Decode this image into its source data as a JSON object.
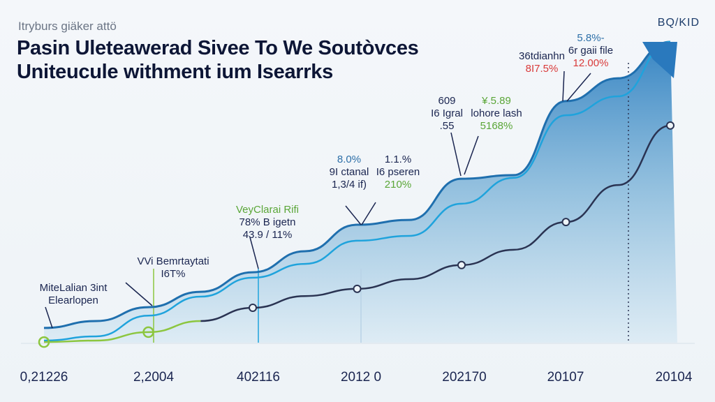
{
  "header": {
    "kicker": "Itryburs giäker attö",
    "title_line1": "Pasin Uleteawerad Sivee To We Soutòvces",
    "title_line2": "Uniteucule withment ium Isearrks",
    "logo": "BQ/KID"
  },
  "annotations": [
    {
      "lines": [
        "MiteLalian 3int",
        "Elearlopen"
      ],
      "colors": [
        "navy",
        "navy"
      ]
    },
    {
      "lines": [
        "VVi Bemrtaytati",
        "I6T%"
      ],
      "colors": [
        "navy",
        "navy"
      ]
    },
    {
      "lines": [
        "VeyClarai Rifi",
        "78% B igetn",
        "43.9 / 11%"
      ],
      "colors": [
        "green",
        "navy",
        "navy"
      ]
    },
    {
      "lines": [
        "8.0%",
        "9I ctanal",
        "1,3/4 if)"
      ],
      "colors": [
        "blue",
        "navy",
        "navy"
      ]
    },
    {
      "lines": [
        "1.1.%",
        "I6 pseren",
        "210%"
      ],
      "colors": [
        "navy",
        "navy",
        "green"
      ]
    },
    {
      "lines": [
        "609",
        "I6 Igral",
        ".55"
      ],
      "colors": [
        "navy",
        "navy",
        "navy"
      ]
    },
    {
      "lines": [
        "¥.5.89",
        "lohore lash",
        "5168%"
      ],
      "colors": [
        "green",
        "navy",
        "green"
      ]
    },
    {
      "lines": [
        "36tdianhn",
        "8I7.5%"
      ],
      "colors": [
        "navy",
        "red"
      ]
    },
    {
      "lines": [
        "5.8%-",
        "6r gaii file",
        "12.00%"
      ],
      "colors": [
        "blue",
        "navy",
        "red"
      ]
    }
  ],
  "chart_data": {
    "type": "area",
    "title": "Pasin Uleteawerad Sivee To We Soutòvces Uniteucule withment ium Isearrks",
    "xlabel": "",
    "ylabel": "",
    "categories": [
      "0,21226",
      "2,2004",
      "402116",
      "2012 0",
      "202170",
      "20107",
      "20104"
    ],
    "x": [
      0,
      0.5,
      1,
      1.5,
      2,
      2.5,
      3,
      3.5,
      4,
      4.5,
      5,
      5.5,
      6
    ],
    "ylim": [
      0,
      100
    ],
    "grid": false,
    "legend": "none",
    "series": [
      {
        "style": "filled area, dark blue outline",
        "color": "#1f6fae",
        "x": [
          0,
          0.5,
          1,
          1.5,
          2,
          2.5,
          3,
          3.5,
          4,
          4.5,
          5,
          5.5,
          6
        ],
        "values": [
          4.9,
          7.2,
          11.8,
          16.9,
          23.4,
          30.4,
          39.2,
          40.8,
          54.5,
          55.7,
          80.3,
          87.9,
          100
        ]
      },
      {
        "style": "line",
        "color": "#1fa3dc",
        "x": [
          0,
          0.5,
          1,
          1.5,
          2,
          2.5,
          3,
          3.5,
          4,
          4.5,
          5,
          5.5,
          6
        ],
        "values": [
          0.7,
          2.1,
          9.0,
          15.3,
          21.6,
          26.2,
          33.9,
          35.5,
          46.2,
          54.8,
          75.6,
          81.9,
          100
        ]
      },
      {
        "style": "line with markers",
        "color": "#2a3352",
        "x": [
          1.5,
          2,
          2.5,
          3,
          3.5,
          4,
          4.5,
          5,
          5.5,
          6
        ],
        "values": [
          7.2,
          11.6,
          15.5,
          17.9,
          21.1,
          25.8,
          30.9,
          40.1,
          52.4,
          72.2
        ]
      },
      {
        "style": "line with markers",
        "color": "#8cc63f",
        "x": [
          0,
          0.5,
          1,
          1.5
        ],
        "values": [
          0.2,
          0.7,
          3.5,
          7.2
        ]
      }
    ]
  },
  "colors": {
    "area_top": "#2d7fc0",
    "area_bottom": "#d6e8f3",
    "navy": "#1a2550",
    "accent_red": "#d93a3a",
    "accent_green": "#5aa637"
  }
}
